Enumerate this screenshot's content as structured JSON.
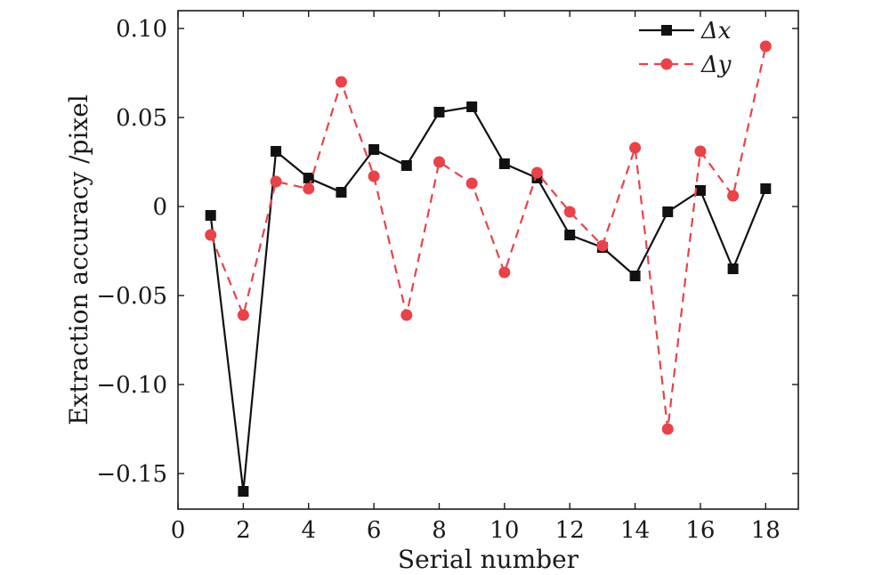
{
  "chart_data": {
    "type": "line",
    "xlabel": "Serial number",
    "ylabel": "Extraction accuracy /pixel",
    "xlim": [
      0,
      19
    ],
    "ylim": [
      -0.17,
      0.11
    ],
    "xticks": [
      0,
      2,
      4,
      6,
      8,
      10,
      12,
      14,
      16,
      18
    ],
    "xtick_labels": [
      "0",
      "2",
      "4",
      "6",
      "8",
      "10",
      "12",
      "14",
      "16",
      "18"
    ],
    "yticks": [
      -0.15,
      -0.1,
      -0.05,
      0,
      0.05,
      0.1
    ],
    "ytick_labels": [
      "−0.15",
      "−0.10",
      "−0.05",
      "0",
      "0.05",
      "0.10"
    ],
    "x": [
      1,
      2,
      3,
      4,
      5,
      6,
      7,
      8,
      9,
      10,
      11,
      12,
      13,
      14,
      15,
      16,
      17,
      18
    ],
    "series": [
      {
        "name": "Δx",
        "color": "#111111",
        "marker": "square",
        "line_style": "solid",
        "values": [
          -0.005,
          -0.16,
          0.031,
          0.016,
          0.008,
          0.032,
          0.023,
          0.053,
          0.056,
          0.024,
          0.016,
          -0.016,
          -0.023,
          -0.039,
          -0.003,
          0.009,
          -0.035,
          0.01
        ]
      },
      {
        "name": "Δy",
        "color": "#e8424a",
        "marker": "circle",
        "line_style": "dashed",
        "values": [
          -0.016,
          -0.061,
          0.014,
          0.01,
          0.07,
          0.017,
          -0.061,
          0.025,
          0.013,
          -0.037,
          0.019,
          -0.003,
          -0.022,
          0.033,
          -0.125,
          0.031,
          0.006,
          0.09
        ]
      }
    ],
    "legend_position": "top-right"
  }
}
